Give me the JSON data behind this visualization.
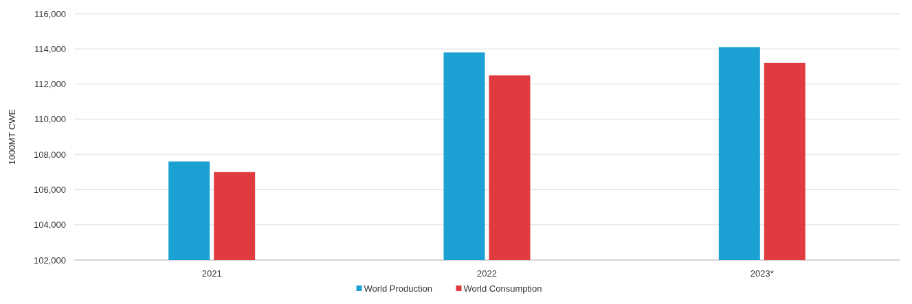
{
  "chart_data": {
    "type": "bar",
    "ylabel": "1000MT CWE",
    "categories": [
      "2021",
      "2022",
      "2023*"
    ],
    "series": [
      {
        "name": "World Production",
        "color": "#1ba1d3",
        "values": [
          107600,
          113800,
          114100
        ]
      },
      {
        "name": "World Consumption",
        "color": "#e03c40",
        "values": [
          107000,
          112500,
          113200
        ]
      }
    ],
    "ylim": [
      102000,
      116000
    ],
    "yticks": [
      {
        "value": 102000,
        "label": "102,000"
      },
      {
        "value": 104000,
        "label": "104,000"
      },
      {
        "value": 106000,
        "label": "106,000"
      },
      {
        "value": 108000,
        "label": "108,000"
      },
      {
        "value": 110000,
        "label": "110,000"
      },
      {
        "value": 112000,
        "label": "112,000"
      },
      {
        "value": 114000,
        "label": "114,000"
      },
      {
        "value": 116000,
        "label": "116,000"
      }
    ],
    "grid": "y",
    "legend": "bottom"
  }
}
